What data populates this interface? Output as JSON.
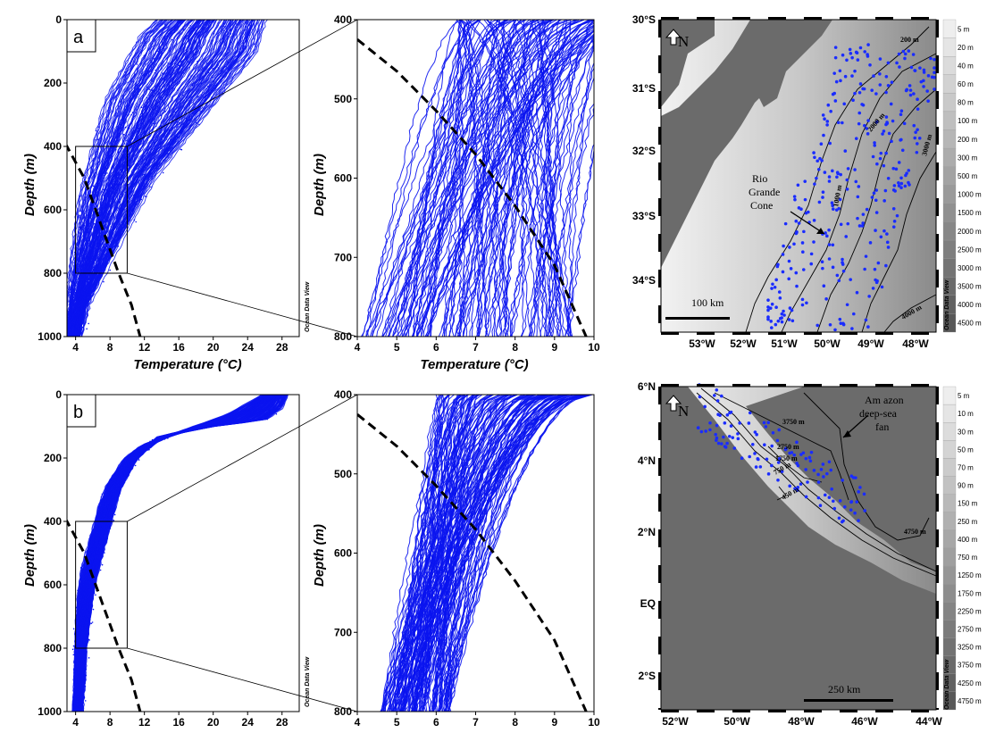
{
  "chart_data": [
    {
      "type": "line",
      "panel": "a",
      "label": "a",
      "xlabel": "Temperature (°C)",
      "ylabel": "Depth (m)",
      "xlim": [
        3,
        30
      ],
      "ylim": [
        1000,
        0
      ],
      "xticks": [
        "4",
        "8",
        "12",
        "16",
        "20",
        "24",
        "28"
      ],
      "yticks": [
        "0",
        "200",
        "400",
        "600",
        "800",
        "1000"
      ],
      "watermark": "Ocean Data View",
      "series": [
        {
          "role": "profile-envelope-warm",
          "x": [
            26,
            25,
            22,
            19,
            16,
            13,
            11,
            9,
            7,
            6,
            5,
            4.5,
            4
          ],
          "y": [
            0,
            100,
            200,
            300,
            400,
            500,
            600,
            700,
            800,
            850,
            900,
            950,
            1000
          ]
        },
        {
          "role": "profile-envelope-cold",
          "x": [
            14,
            12,
            10,
            8,
            7,
            6,
            5,
            4.5,
            4,
            3.8,
            3.7,
            3.6,
            3.5
          ],
          "y": [
            0,
            50,
            150,
            250,
            350,
            450,
            550,
            650,
            750,
            800,
            850,
            900,
            1000
          ]
        },
        {
          "role": "dashed-boundary",
          "x": [
            2.8,
            5,
            7,
            9,
            10.5,
            11.5
          ],
          "y": [
            390,
            500,
            650,
            800,
            900,
            1000
          ]
        }
      ],
      "zoom_box": {
        "x": [
          4,
          10
        ],
        "y": [
          400,
          800
        ]
      }
    },
    {
      "type": "line",
      "panel": "a-zoom",
      "xlabel": "Temperature (°C)",
      "ylabel": "Depth (m)",
      "xlim": [
        4,
        10
      ],
      "ylim": [
        800,
        400
      ],
      "xticks": [
        "4",
        "5",
        "6",
        "7",
        "8",
        "9",
        "10"
      ],
      "yticks": [
        "400",
        "500",
        "600",
        "700",
        "800"
      ],
      "series": [
        {
          "role": "dashed-boundary",
          "x": [
            4,
            5,
            6,
            7,
            8,
            9,
            9.8
          ],
          "y": [
            425,
            465,
            515,
            570,
            635,
            710,
            800
          ]
        }
      ]
    },
    {
      "type": "line",
      "panel": "b",
      "label": "b",
      "xlabel": "",
      "ylabel": "Depth (m)",
      "xlim": [
        3,
        30
      ],
      "ylim": [
        1000,
        0
      ],
      "xticks": [
        "4",
        "8",
        "12",
        "16",
        "20",
        "24",
        "28"
      ],
      "yticks": [
        "0",
        "200",
        "400",
        "600",
        "800",
        "1000"
      ],
      "watermark": "Ocean Data View",
      "series": [
        {
          "role": "profile-envelope-warm",
          "x": [
            28.5,
            28,
            26,
            20,
            14,
            11,
            9,
            8,
            7,
            6,
            5.5,
            5,
            4.8,
            4.5
          ],
          "y": [
            0,
            40,
            80,
            100,
            130,
            200,
            300,
            400,
            500,
            600,
            700,
            800,
            900,
            1000
          ]
        },
        {
          "role": "profile-envelope-cold",
          "x": [
            26,
            22,
            16,
            12,
            10,
            8,
            7,
            6,
            5,
            4.5,
            4.3,
            4.2,
            4.1,
            4
          ],
          "y": [
            0,
            60,
            120,
            160,
            200,
            280,
            350,
            450,
            550,
            650,
            750,
            850,
            950,
            1000
          ]
        },
        {
          "role": "dashed-boundary",
          "x": [
            2.8,
            5,
            7,
            9,
            10.5,
            11.5
          ],
          "y": [
            390,
            500,
            650,
            800,
            900,
            1000
          ]
        }
      ],
      "zoom_box": {
        "x": [
          4,
          10
        ],
        "y": [
          400,
          800
        ]
      }
    },
    {
      "type": "line",
      "panel": "b-zoom",
      "xlabel": "",
      "ylabel": "Depth (m)",
      "xlim": [
        4,
        10
      ],
      "ylim": [
        800,
        400
      ],
      "xticks": [
        "4",
        "5",
        "6",
        "7",
        "8",
        "9",
        "10"
      ],
      "yticks": [
        "400",
        "500",
        "600",
        "700",
        "800"
      ],
      "series": [
        {
          "role": "dashed-boundary",
          "x": [
            4,
            5,
            6,
            7,
            8,
            9,
            9.8
          ],
          "y": [
            425,
            465,
            515,
            570,
            635,
            710,
            800
          ]
        }
      ]
    }
  ],
  "maps": {
    "top": {
      "lat_labels": [
        "30°S",
        "31°S",
        "32°S",
        "33°S",
        "34°S"
      ],
      "lon_labels": [
        "53°W",
        "52°W",
        "51°W",
        "50°W",
        "49°W",
        "48°W"
      ],
      "north": "N",
      "scale": "100 km",
      "feature": [
        "Rio",
        "Grande",
        "Cone"
      ],
      "contours": [
        "200 m",
        "1000 m",
        "2000 m",
        "3000 m",
        "4000 m"
      ],
      "legend": [
        "5 m",
        "20 m",
        "40 m",
        "60 m",
        "80 m",
        "100 m",
        "200 m",
        "300 m",
        "500 m",
        "1000 m",
        "1500 m",
        "2000 m",
        "2500 m",
        "3000 m",
        "3500 m",
        "4000 m",
        "4500 m"
      ],
      "watermark": "Ocean Data View",
      "point_color": "#1a2cff",
      "land_color": "#6b6b6b"
    },
    "bottom": {
      "lat_labels": [
        "6°N",
        "4°N",
        "2°N",
        "EQ",
        "2°S"
      ],
      "lon_labels": [
        "52°W",
        "50°W",
        "48°W",
        "46°W",
        "44°W"
      ],
      "north": "N",
      "scale": "250 km",
      "feature": [
        "Am azon",
        "deep-sea",
        "fan"
      ],
      "contours": [
        "3750 m",
        "2750 m",
        "1750 m",
        "750 m",
        "450 m",
        "4750 m"
      ],
      "legend": [
        "5 m",
        "10 m",
        "30 m",
        "50 m",
        "70 m",
        "90 m",
        "150 m",
        "250 m",
        "400 m",
        "750 m",
        "1250 m",
        "1750 m",
        "2250 m",
        "2750 m",
        "3250 m",
        "3750 m",
        "4250 m",
        "4750 m"
      ],
      "watermark": "Ocean Data View",
      "point_color": "#1a2cff",
      "land_color": "#6b6b6b"
    }
  },
  "colors": {
    "profiles": "#0a14f0",
    "dashed": "#000000"
  }
}
